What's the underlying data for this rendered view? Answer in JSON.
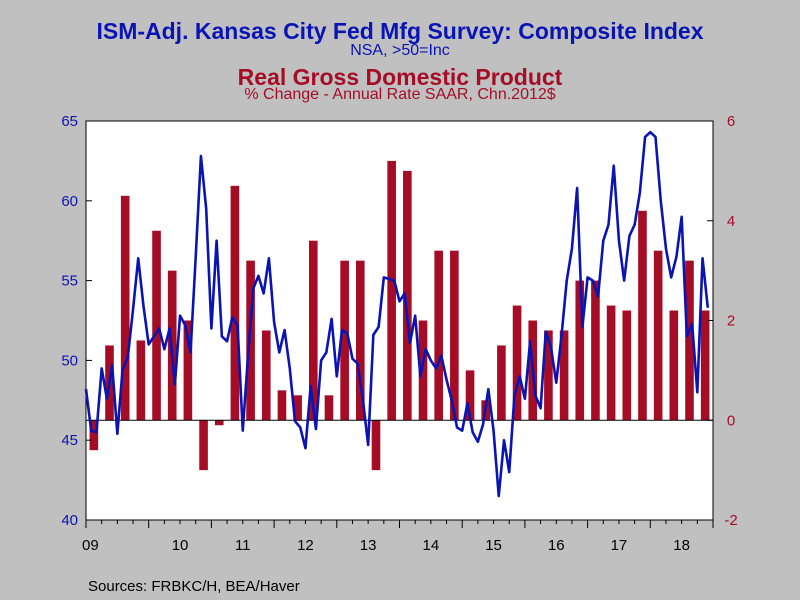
{
  "titles": {
    "left_title": "ISM-Adj. Kansas City Fed Mfg Survey: Composite Index",
    "left_subtitle": "NSA, >50=Inc",
    "right_title": "Real Gross Domestic Product",
    "right_subtitle": "% Change - Annual Rate     SAAR, Chn.2012$"
  },
  "source": "Sources:  FRBKC/H, BEA/Haver",
  "colors": {
    "background": "#c0c0c0",
    "line": "#0a14b4",
    "bars": "#a50d26",
    "left_axis_text": "#0a14b4",
    "right_axis_text": "#a50d26"
  },
  "chart_data": {
    "type": "bar+line",
    "x_tick_labels": [
      "09",
      "10",
      "11",
      "12",
      "13",
      "14",
      "15",
      "16",
      "17",
      "18"
    ],
    "x_range": [
      2009.0,
      2019.0
    ],
    "left_axis": {
      "ylim": [
        40,
        65
      ],
      "ticks": [
        40,
        45,
        50,
        55,
        60,
        65
      ]
    },
    "right_axis": {
      "ylim": [
        -2,
        6
      ],
      "ticks": [
        -2,
        0,
        2,
        4,
        6
      ]
    },
    "bar_series": {
      "axis": "right",
      "x": [
        2009.125,
        2009.375,
        2009.625,
        2009.875,
        2010.125,
        2010.375,
        2010.625,
        2010.875,
        2011.125,
        2011.375,
        2011.625,
        2011.875,
        2012.125,
        2012.375,
        2012.625,
        2012.875,
        2013.125,
        2013.375,
        2013.625,
        2013.875,
        2014.125,
        2014.375,
        2014.625,
        2014.875,
        2015.125,
        2015.375,
        2015.625,
        2015.875,
        2016.125,
        2016.375,
        2016.625,
        2016.875,
        2017.125,
        2017.375,
        2017.625,
        2017.875,
        2018.125,
        2018.375,
        2018.625,
        2018.875
      ],
      "values": [
        -0.6,
        1.5,
        4.5,
        1.6,
        3.8,
        3.0,
        2.0,
        -1.0,
        -0.1,
        4.7,
        3.2,
        1.8,
        0.6,
        0.5,
        3.6,
        0.5,
        3.2,
        3.2,
        -1.0,
        5.2,
        5.0,
        2.0,
        3.4,
        3.4,
        1.0,
        0.4,
        1.5,
        2.3,
        2.0,
        1.8,
        1.8,
        2.8,
        2.8,
        2.3,
        2.2,
        4.2,
        3.4,
        2.2,
        3.2,
        2.2
      ]
    },
    "line_series": {
      "axis": "left",
      "x": [
        2009.0,
        2009.083,
        2009.167,
        2009.25,
        2009.333,
        2009.417,
        2009.5,
        2009.583,
        2009.667,
        2009.75,
        2009.833,
        2009.917,
        2010.0,
        2010.083,
        2010.167,
        2010.25,
        2010.333,
        2010.417,
        2010.5,
        2010.583,
        2010.667,
        2010.75,
        2010.833,
        2010.917,
        2011.0,
        2011.083,
        2011.167,
        2011.25,
        2011.333,
        2011.417,
        2011.5,
        2011.583,
        2011.667,
        2011.75,
        2011.833,
        2011.917,
        2012.0,
        2012.083,
        2012.167,
        2012.25,
        2012.333,
        2012.417,
        2012.5,
        2012.583,
        2012.667,
        2012.75,
        2012.833,
        2012.917,
        2013.0,
        2013.083,
        2013.167,
        2013.25,
        2013.333,
        2013.417,
        2013.5,
        2013.583,
        2013.667,
        2013.75,
        2013.833,
        2013.917,
        2014.0,
        2014.083,
        2014.167,
        2014.25,
        2014.333,
        2014.417,
        2014.5,
        2014.583,
        2014.667,
        2014.75,
        2014.833,
        2014.917,
        2015.0,
        2015.083,
        2015.167,
        2015.25,
        2015.333,
        2015.417,
        2015.5,
        2015.583,
        2015.667,
        2015.75,
        2015.833,
        2015.917,
        2016.0,
        2016.083,
        2016.167,
        2016.25,
        2016.333,
        2016.417,
        2016.5,
        2016.583,
        2016.667,
        2016.75,
        2016.833,
        2016.917,
        2017.0,
        2017.083,
        2017.167,
        2017.25,
        2017.333,
        2017.417,
        2017.5,
        2017.583,
        2017.667,
        2017.75,
        2017.833,
        2017.917,
        2018.0,
        2018.083,
        2018.167,
        2018.25,
        2018.333,
        2018.417,
        2018.5,
        2018.583,
        2018.667,
        2018.75,
        2018.833,
        2018.917
      ],
      "values": [
        48.2,
        45.6,
        45.5,
        49.5,
        47.6,
        49.7,
        45.4,
        49.4,
        50.2,
        53.2,
        56.4,
        53.4,
        51.0,
        51.5,
        52.0,
        50.7,
        52.0,
        48.5,
        52.8,
        52.2,
        50.5,
        56.5,
        62.8,
        59.5,
        52.0,
        57.5,
        51.5,
        51.2,
        52.7,
        52.2,
        45.6,
        50.2,
        54.5,
        55.3,
        54.2,
        56.4,
        52.4,
        50.5,
        51.9,
        49.5,
        46.2,
        45.8,
        44.5,
        48.4,
        45.7,
        50.0,
        50.5,
        52.6,
        49.0,
        51.9,
        51.7,
        50.1,
        49.8,
        47.5,
        44.7,
        51.6,
        52.1,
        55.2,
        55.1,
        55.0,
        53.7,
        54.2,
        51.1,
        52.8,
        49.0,
        50.7,
        50.0,
        49.5,
        50.3,
        48.8,
        47.5,
        45.8,
        45.6,
        47.3,
        45.5,
        44.9,
        46.0,
        48.2,
        45.6,
        41.5,
        45.0,
        43.0,
        47.8,
        49.0,
        47.6,
        51.2,
        47.8,
        47.0,
        51.8,
        50.8,
        48.6,
        51.5,
        55.0,
        57.0,
        60.8,
        52.1,
        55.2,
        55.0,
        54.0,
        57.5,
        58.5,
        62.2,
        57.5,
        55.0,
        57.8,
        58.5,
        60.5,
        64.0,
        64.3,
        64.0,
        60.0,
        57.0,
        55.2,
        56.5,
        59.0,
        51.5,
        52.3,
        48.0,
        56.4,
        53.3
      ]
    }
  }
}
